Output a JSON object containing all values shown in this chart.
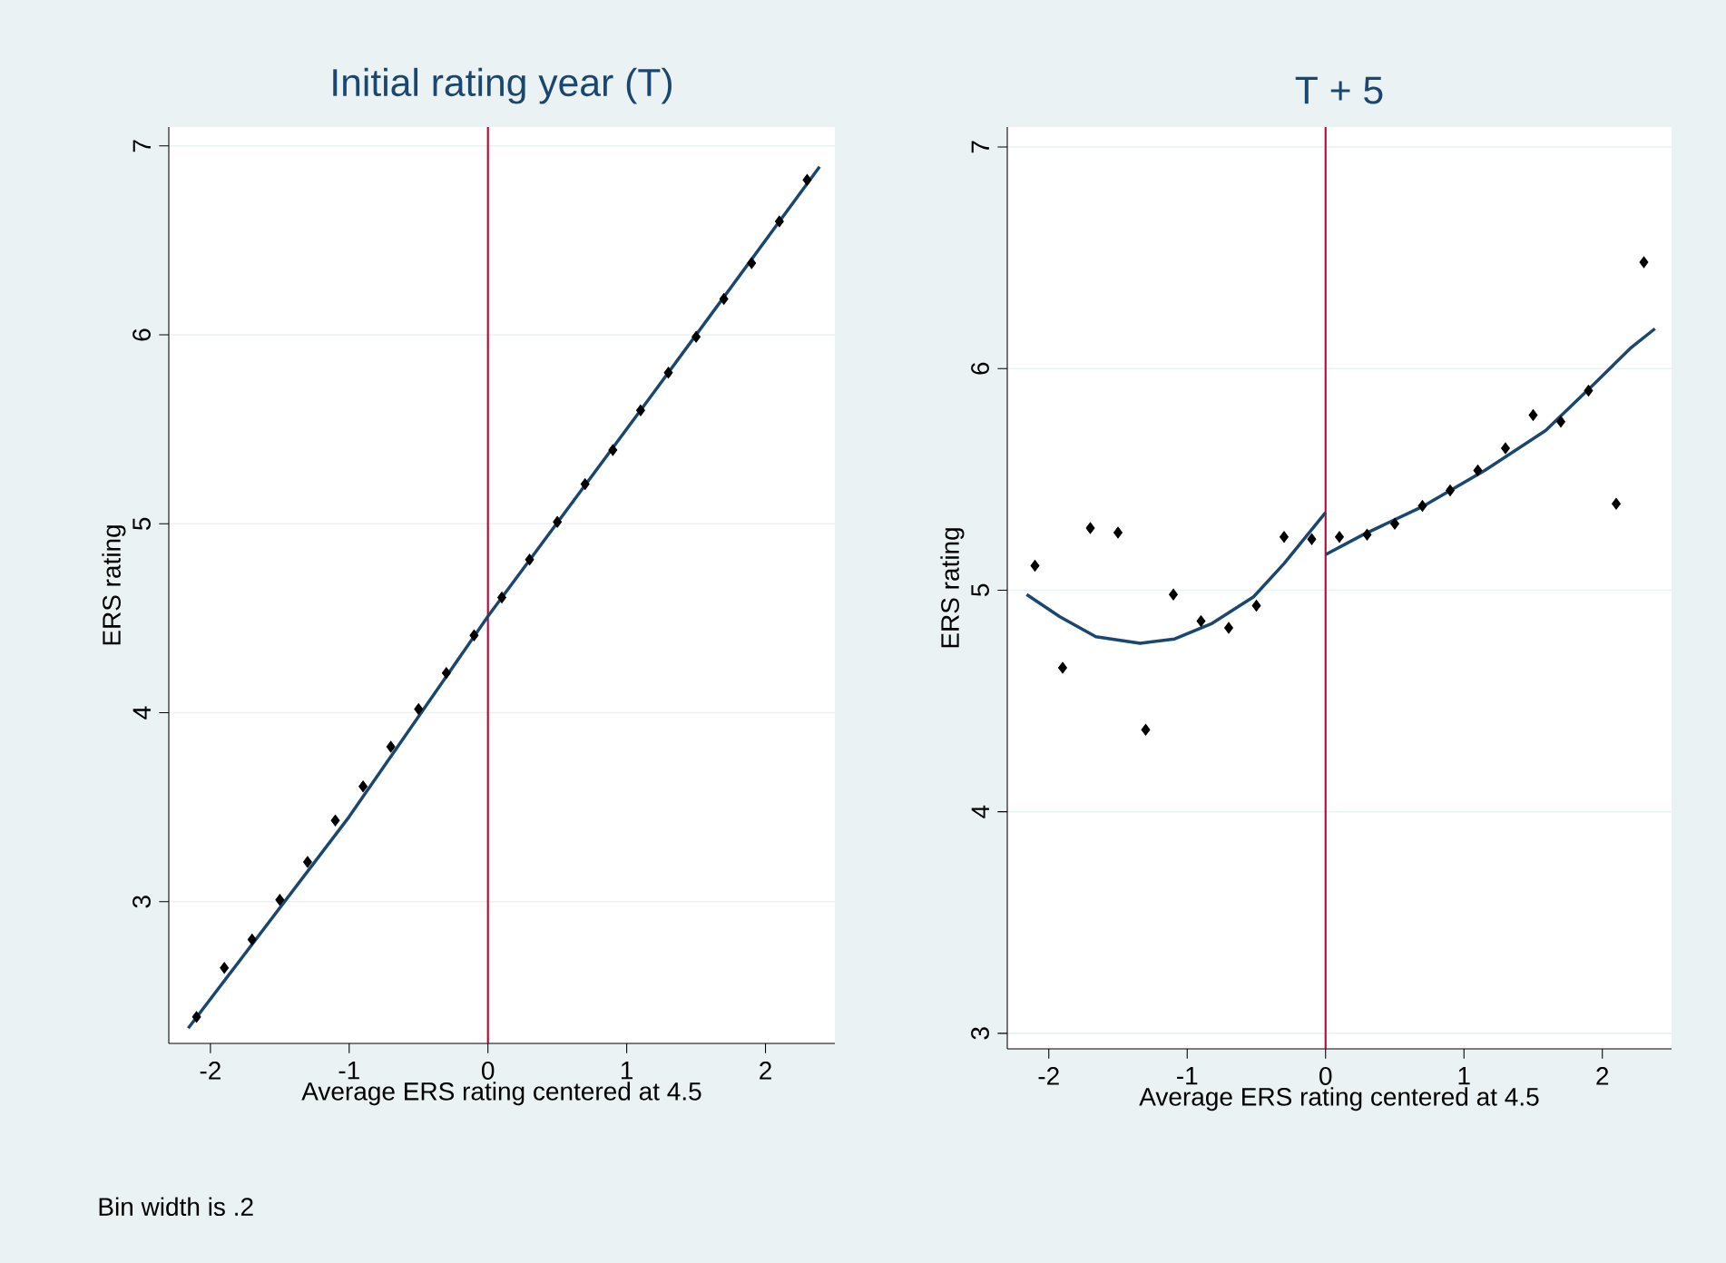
{
  "chart_data": [
    {
      "type": "scatter",
      "title": "Initial rating year (T)",
      "xlabel": "Average ERS rating centered at 4.5",
      "ylabel": "ERS rating",
      "xlim": [
        -2.3,
        2.5
      ],
      "ylim": [
        2.25,
        7.1
      ],
      "xticks": [
        -2,
        -1,
        0,
        1,
        2
      ],
      "yticks": [
        3,
        4,
        5,
        6,
        7
      ],
      "grid": "y",
      "marker": "diamond",
      "series": [
        {
          "type": "scatter",
          "color": "#000000",
          "x": [
            -2.1,
            -1.9,
            -1.7,
            -1.5,
            -1.3,
            -1.1,
            -0.9,
            -0.7,
            -0.5,
            -0.3,
            -0.1,
            0.1,
            0.3,
            0.5,
            0.7,
            0.9,
            1.1,
            1.3,
            1.5,
            1.7,
            1.9,
            2.1,
            2.3
          ],
          "values": [
            2.39,
            2.65,
            2.8,
            3.01,
            3.21,
            3.43,
            3.61,
            3.82,
            4.02,
            4.21,
            4.41,
            4.61,
            4.81,
            5.01,
            5.21,
            5.39,
            5.6,
            5.8,
            5.99,
            6.19,
            6.38,
            6.6,
            6.82
          ]
        },
        {
          "type": "line",
          "marker": "none",
          "color": "#1a476f",
          "x": [
            -2.16,
            -1,
            0,
            1.2,
            2.39
          ],
          "values": [
            2.33,
            3.45,
            4.51,
            5.7,
            6.89
          ]
        }
      ],
      "ref_lines": [
        {
          "axis": "x",
          "value": 0,
          "color": "#c10534"
        }
      ],
      "annotations": [
        "Bin width is .2"
      ]
    },
    {
      "type": "scatter",
      "title": "T + 5",
      "xlabel": "Average ERS rating centered at 4.5",
      "ylabel": "ERS rating",
      "xlim": [
        -2.3,
        2.5
      ],
      "ylim": [
        2.93,
        7.09
      ],
      "xticks": [
        -2,
        -1,
        0,
        1,
        2
      ],
      "yticks": [
        3,
        4,
        5,
        6,
        7
      ],
      "grid": "y",
      "marker": "diamond",
      "series": [
        {
          "type": "scatter",
          "color": "#000000",
          "x": [
            -2.1,
            -1.9,
            -1.7,
            -1.5,
            -1.3,
            -1.1,
            -0.9,
            -0.7,
            -0.5,
            -0.3,
            -0.1,
            0.1,
            0.3,
            0.5,
            0.7,
            0.9,
            1.1,
            1.3,
            1.5,
            1.7,
            1.9,
            2.1,
            2.3
          ],
          "values": [
            5.11,
            4.65,
            5.28,
            5.26,
            4.37,
            4.98,
            4.86,
            4.83,
            4.93,
            5.24,
            5.23,
            5.24,
            5.25,
            5.3,
            5.38,
            5.45,
            5.54,
            5.64,
            5.79,
            5.76,
            5.9,
            5.39,
            6.48
          ]
        },
        {
          "type": "line",
          "marker": "none",
          "color": "#1a476f",
          "x": [
            -2.16,
            -1.92,
            -1.66,
            -1.34,
            -1.09,
            -0.82,
            -0.52,
            -0.3,
            0
          ],
          "values": [
            4.98,
            4.88,
            4.79,
            4.76,
            4.78,
            4.85,
            4.97,
            5.12,
            5.35
          ]
        },
        {
          "type": "line",
          "marker": "none",
          "color": "#1a476f",
          "x": [
            0,
            0.27,
            0.71,
            1.15,
            1.59,
            1.94,
            2.2,
            2.38
          ],
          "values": [
            5.16,
            5.25,
            5.38,
            5.54,
            5.72,
            5.93,
            6.09,
            6.18
          ]
        }
      ],
      "ref_lines": [
        {
          "axis": "x",
          "value": 0,
          "color": "#c10534"
        }
      ]
    }
  ]
}
